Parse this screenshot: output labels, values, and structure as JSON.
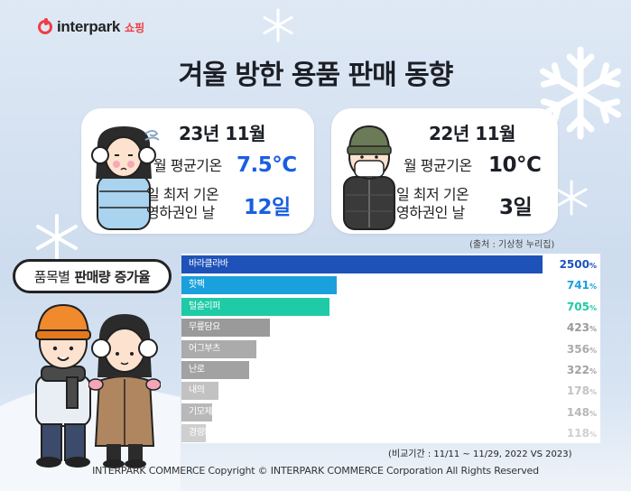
{
  "brand": {
    "name": "interpark",
    "sub": "쇼핑"
  },
  "title": "겨울 방한 용품 판매 동향",
  "card_2023": {
    "heading": "23년 11월",
    "avg_temp_label": "월 평균기온",
    "avg_temp_value": "7.5°C",
    "cold_days_label_1": "일 최저 기온",
    "cold_days_label_2": "영하권인 날",
    "cold_days_value": "12일"
  },
  "card_2022": {
    "heading": "22년 11월",
    "avg_temp_label": "월 평균기온",
    "avg_temp_value": "10°C",
    "cold_days_label_1": "일 최저 기온",
    "cold_days_label_2": "영하권인 날",
    "cold_days_value": "3일"
  },
  "source": "(출처 : 기상청 누리집)",
  "badge": {
    "normal": "품목별",
    "bold": "판매량 증가율"
  },
  "chart_data": {
    "type": "bar",
    "orientation": "horizontal",
    "categories": [
      "바라클라바",
      "핫팩",
      "털슬리퍼",
      "무릎담요",
      "어그부츠",
      "난로",
      "내의",
      "기모제품",
      "경량패딩"
    ],
    "values": [
      2500,
      741,
      705,
      423,
      356,
      322,
      178,
      148,
      118
    ],
    "value_unit": "%",
    "colors": [
      "#1f52b8",
      "#1aa0dc",
      "#1ecba6",
      "#9a9a9a",
      "#ababab",
      "#a2a2a2",
      "#c2c2c2",
      "#b8b8b8",
      "#cfcfcf"
    ],
    "value_colors": [
      "#1f52b8",
      "#1aa0dc",
      "#1ecba6",
      "#9a9a9a",
      "#ababab",
      "#a2a2a2",
      "#c2c2c2",
      "#b8b8b8",
      "#cfcfcf"
    ]
  },
  "compare_period": "(비교기간 : 11/11 ~ 11/29, 2022  VS  2023)",
  "footer": "INTERPARK COMMERCE Copyright © INTERPARK COMMERCE Corporation All Rights Reserved"
}
